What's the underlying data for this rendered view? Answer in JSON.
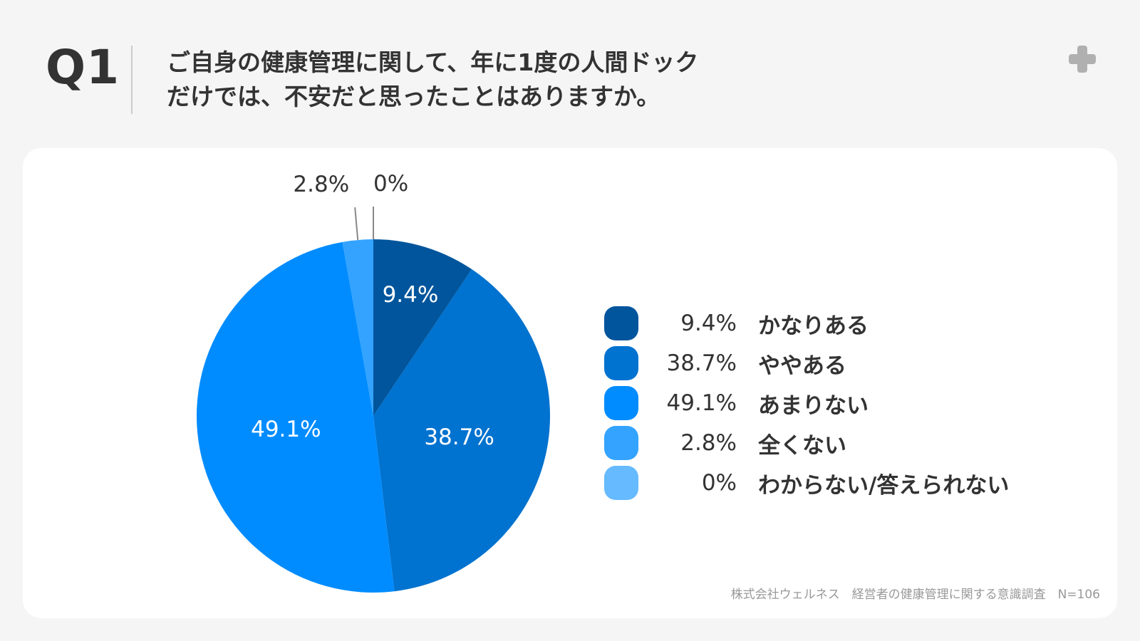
{
  "question": {
    "label": "Q1",
    "title_lines": [
      "ご自身の健康管理に関して、年に1度の人間ドック",
      "だけでは、不安だと思ったことはありますか。"
    ]
  },
  "source": "株式会社ウェルネス　経営者の健康管理に関する意識調査　N=106",
  "chart_data": {
    "type": "pie",
    "title": "",
    "labels": [
      "かなりある",
      "ややある",
      "あまりない",
      "全くない",
      "わからない/答えられない"
    ],
    "values": [
      9.4,
      38.7,
      49.1,
      2.8,
      0
    ],
    "value_labels": [
      "9.4%",
      "38.7%",
      "49.1%",
      "2.8%",
      "0%"
    ],
    "colors": [
      "#00559c",
      "#0072cf",
      "#008cff",
      "#33a3ff",
      "#66baff"
    ],
    "start": "12 o'clock",
    "direction": "clockwise",
    "legend_position": "right"
  }
}
